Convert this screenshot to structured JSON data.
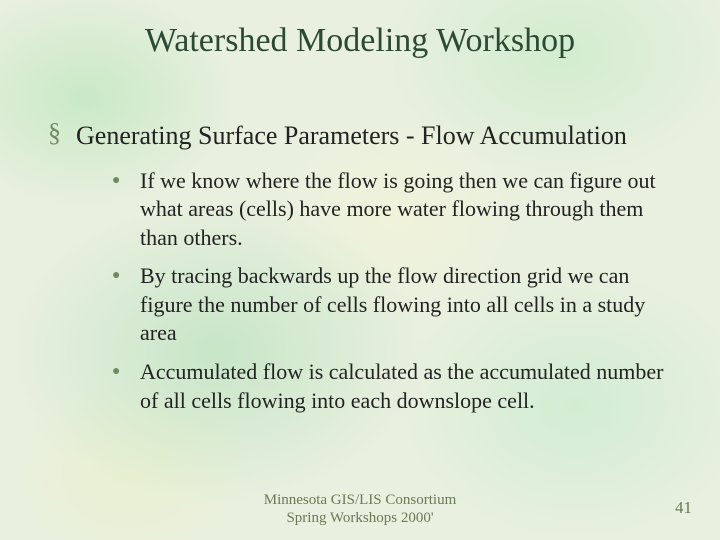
{
  "title": "Watershed Modeling Workshop",
  "section": {
    "marker": "§",
    "text": "Generating Surface Parameters - Flow Accumulation"
  },
  "bullets": [
    "If we know where the flow is going then we can figure out what areas (cells) have more water flowing through them than others.",
    "By tracing backwards up the flow direction grid we can figure the number of cells flowing into all cells in a study area",
    "Accumulated flow is calculated as the accumulated number of all cells flowing into each downslope cell."
  ],
  "footer": {
    "line1": "Minnesota GIS/LIS Consortium",
    "line2": "Spring Workshops 2000'"
  },
  "page_number": "41",
  "colors": {
    "title": "#2c4a33",
    "marker": "#6f8a5e",
    "body": "#222222",
    "footer": "#6a7a55",
    "background_base": "#e9f0df"
  },
  "fonts": {
    "family": "Times New Roman",
    "title_size_pt": 34,
    "section_size_pt": 26,
    "bullet_size_pt": 22,
    "footer_size_pt": 15,
    "page_num_size_pt": 17
  }
}
